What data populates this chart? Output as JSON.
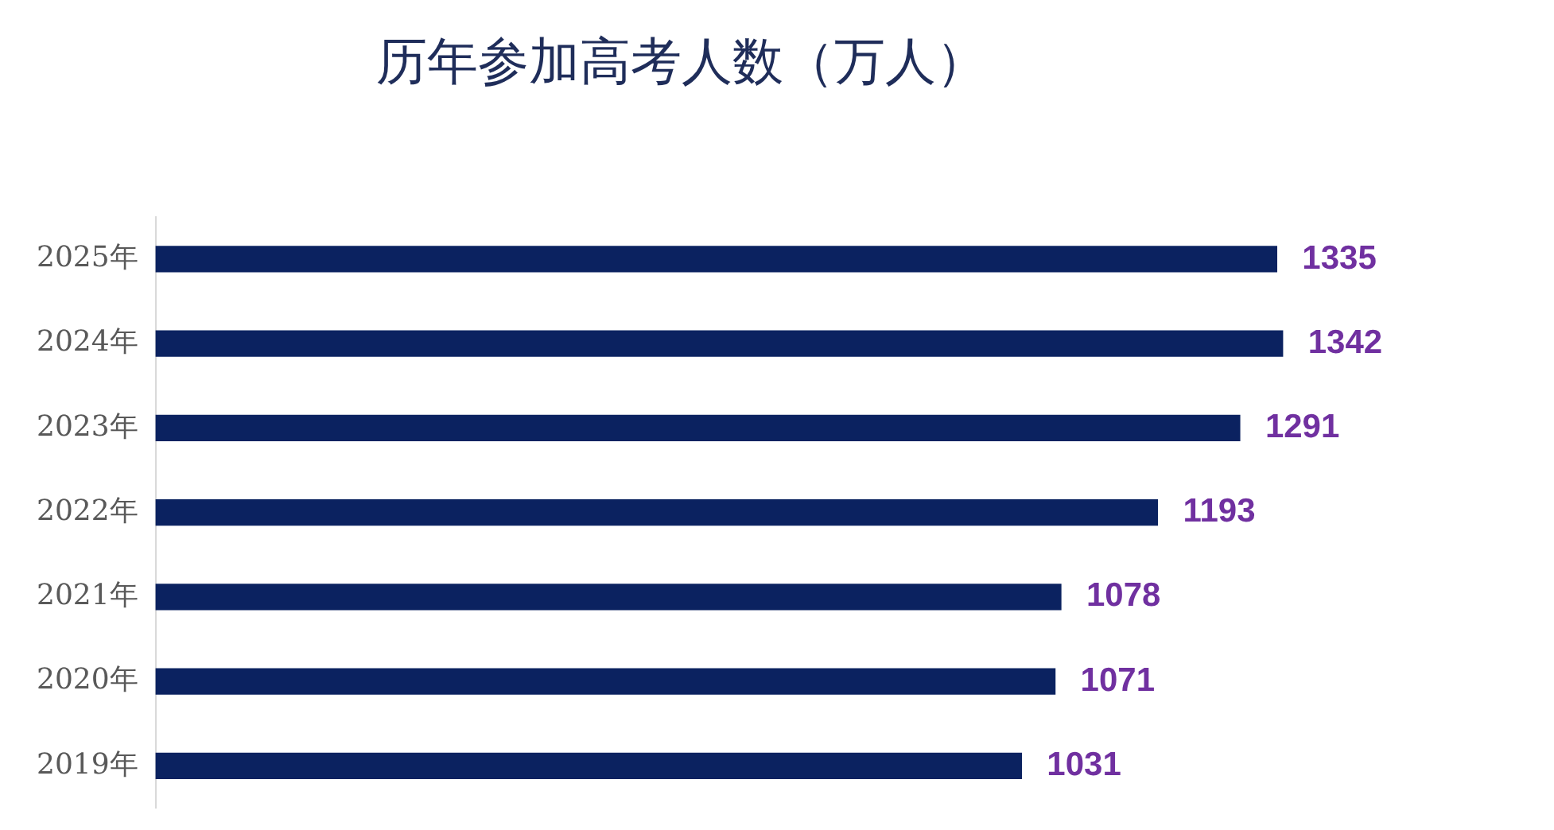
{
  "chart_data": {
    "type": "bar",
    "orientation": "horizontal",
    "title": "历年参加高考人数（万人）",
    "categories": [
      "2025年",
      "2024年",
      "2023年",
      "2022年",
      "2021年",
      "2020年",
      "2019年"
    ],
    "values": [
      1335,
      1342,
      1291,
      1193,
      1078,
      1071,
      1031
    ],
    "color": "#0b2260",
    "tick_labels": "y",
    "data_labels": true
  }
}
